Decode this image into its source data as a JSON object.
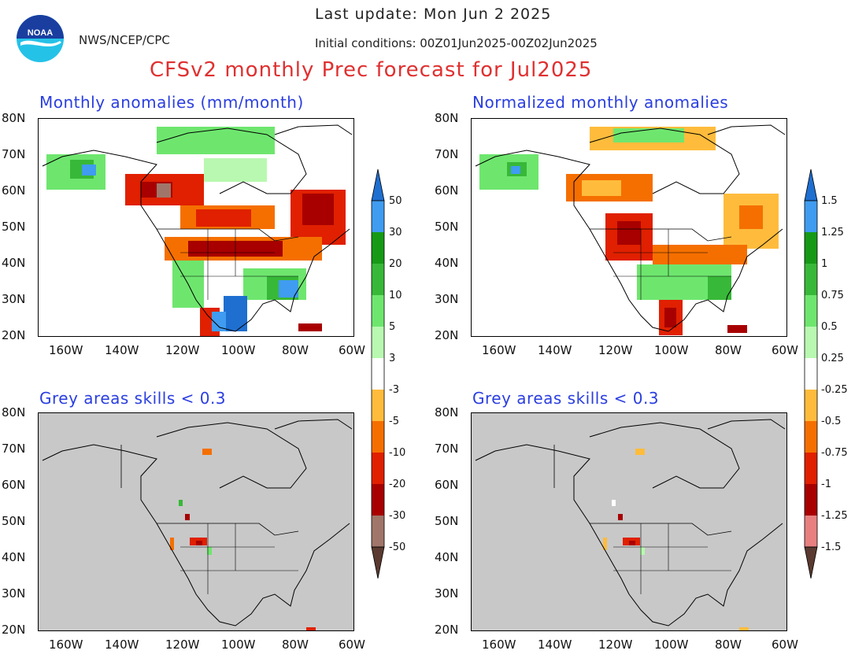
{
  "header": {
    "org": "NWS/NCEP/CPC",
    "logo_text": "NOAA",
    "last_update": "Last update: Mon Jun  2 2025",
    "init_conditions": "Initial conditions: 00Z01Jun2025-00Z02Jun2025",
    "title": "CFSv2 monthly Prec forecast for Jul2025"
  },
  "panels": {
    "top_left": "Monthly anomalies (mm/month)",
    "top_right": "Normalized monthly anomalies",
    "bottom_left": "Grey areas skills < 0.3",
    "bottom_right": "Grey areas skills < 0.3"
  },
  "axes": {
    "lat_labels": [
      "80N",
      "70N",
      "60N",
      "50N",
      "40N",
      "30N",
      "20N"
    ],
    "lon_labels": [
      "160W",
      "140W",
      "120W",
      "100W",
      "80W",
      "60W"
    ]
  },
  "colorbar_left": {
    "labels": [
      "50",
      "30",
      "20",
      "10",
      "5",
      "3",
      "-3",
      "-5",
      "-10",
      "-20",
      "-30",
      "-50"
    ]
  },
  "colorbar_right": {
    "labels": [
      "1.5",
      "1.25",
      "1",
      "0.75",
      "0.5",
      "0.25",
      "-0.25",
      "-0.5",
      "-0.75",
      "-1",
      "-1.25",
      "-1.5"
    ]
  },
  "colors": {
    "wet": [
      "#1e6fd0",
      "#3f9cf0",
      "#169a16",
      "#38b838",
      "#6ee66e",
      "#b8f8b0"
    ],
    "dry": [
      "#ffbc3c",
      "#f56f00",
      "#e02000",
      "#a80000",
      "#a0766a",
      "#5a3a30"
    ],
    "dry_norm": [
      "#ffbc3c",
      "#f56f00",
      "#e02000",
      "#a80000",
      "#900000",
      "#e88080",
      "#5a3a30"
    ],
    "grey": "#c8c8c8",
    "title_red": "#e03030",
    "label_blue": "#2a3ee0"
  }
}
